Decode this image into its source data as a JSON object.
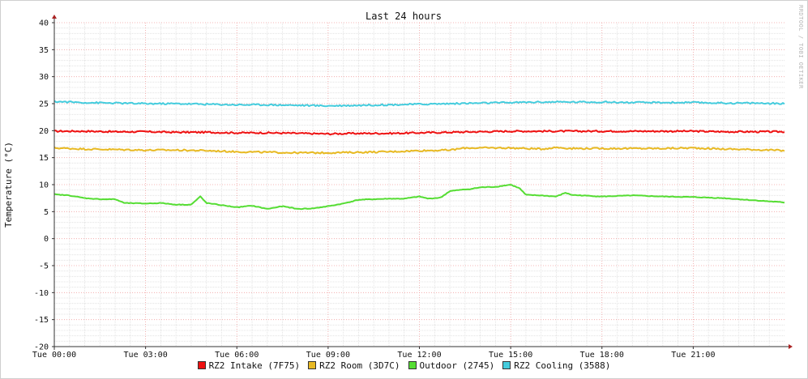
{
  "chart_data": {
    "type": "line",
    "title": "Last 24 hours",
    "ylabel": "Temperature (°C)",
    "xlabel": "",
    "ylim": [
      -20,
      40
    ],
    "y_ticks": [
      -20,
      -15,
      -10,
      -5,
      0,
      5,
      10,
      15,
      20,
      25,
      30,
      35,
      40
    ],
    "x_range_hours": [
      0,
      24
    ],
    "x_ticks": [
      {
        "label": "Tue 00:00",
        "hour": 0
      },
      {
        "label": "Tue 03:00",
        "hour": 3
      },
      {
        "label": "Tue 06:00",
        "hour": 6
      },
      {
        "label": "Tue 09:00",
        "hour": 9
      },
      {
        "label": "Tue 12:00",
        "hour": 12
      },
      {
        "label": "Tue 15:00",
        "hour": 15
      },
      {
        "label": "Tue 18:00",
        "hour": 18
      },
      {
        "label": "Tue 21:00",
        "hour": 21
      }
    ],
    "grid": true,
    "legend_position": "bottom",
    "watermark": "RRDTOOL / TOBI OETIKER",
    "series": [
      {
        "name": "RZ2 Intake (7F75)",
        "color": "#ee1111",
        "x_hours": [
          0,
          1,
          2,
          3,
          4,
          5,
          6,
          7,
          8,
          9,
          10,
          11,
          12,
          13,
          14,
          15,
          16,
          17,
          18,
          19,
          20,
          21,
          22,
          23,
          24
        ],
        "values": [
          19.9,
          19.9,
          19.8,
          19.8,
          19.7,
          19.7,
          19.6,
          19.6,
          19.5,
          19.4,
          19.5,
          19.5,
          19.6,
          19.7,
          19.8,
          19.9,
          19.9,
          19.9,
          19.9,
          19.9,
          19.9,
          19.9,
          19.8,
          19.8,
          19.8
        ]
      },
      {
        "name": "RZ2 Room (3D7C)",
        "color": "#e8b923",
        "x_hours": [
          0,
          1,
          2,
          3,
          4,
          5,
          6,
          7,
          8,
          9,
          10,
          11,
          12,
          13,
          13.5,
          14,
          15,
          16,
          16.5,
          17,
          18,
          19,
          20,
          21,
          22,
          23,
          24
        ],
        "values": [
          16.8,
          16.6,
          16.5,
          16.4,
          16.4,
          16.3,
          16.1,
          16.0,
          15.9,
          15.9,
          16.0,
          16.1,
          16.3,
          16.4,
          16.8,
          16.8,
          16.8,
          16.6,
          16.9,
          16.7,
          16.7,
          16.7,
          16.7,
          16.8,
          16.6,
          16.5,
          16.3
        ]
      },
      {
        "name": "Outdoor (2745)",
        "color": "#55dd33",
        "x_hours": [
          0,
          0.5,
          1,
          1.5,
          2,
          2.3,
          3,
          3.5,
          4,
          4.5,
          4.8,
          5,
          5.5,
          6,
          6.5,
          7,
          7.5,
          8,
          8.5,
          9,
          9.5,
          10,
          10.5,
          11,
          11.5,
          12,
          12.3,
          12.7,
          13,
          13.3,
          13.7,
          14,
          14.5,
          15,
          15.3,
          15.5,
          16,
          16.5,
          16.8,
          17,
          18,
          19,
          20,
          21,
          22,
          23,
          24
        ],
        "values": [
          8.2,
          8.0,
          7.5,
          7.3,
          7.3,
          6.6,
          6.5,
          6.6,
          6.3,
          6.3,
          7.8,
          6.6,
          6.2,
          5.8,
          6.1,
          5.5,
          6.0,
          5.5,
          5.6,
          6.0,
          6.5,
          7.2,
          7.3,
          7.4,
          7.4,
          7.8,
          7.4,
          7.6,
          8.8,
          9.0,
          9.2,
          9.5,
          9.6,
          10.0,
          9.3,
          8.1,
          8.0,
          7.8,
          8.5,
          8.1,
          7.8,
          8.0,
          7.8,
          7.7,
          7.5,
          7.1,
          6.7
        ]
      },
      {
        "name": "RZ2 Cooling (3588)",
        "color": "#44ccdd",
        "x_hours": [
          0,
          1,
          2,
          3,
          4,
          5,
          6,
          7,
          8,
          9,
          10,
          11,
          12,
          13,
          14,
          15,
          16,
          17,
          18,
          19,
          20,
          21,
          22,
          23,
          24
        ],
        "values": [
          25.4,
          25.2,
          25.1,
          25.0,
          25.0,
          24.9,
          24.8,
          24.8,
          24.7,
          24.6,
          24.7,
          24.8,
          24.9,
          25.0,
          25.1,
          25.2,
          25.3,
          25.3,
          25.3,
          25.2,
          25.2,
          25.2,
          25.1,
          25.1,
          25.0
        ]
      }
    ]
  }
}
